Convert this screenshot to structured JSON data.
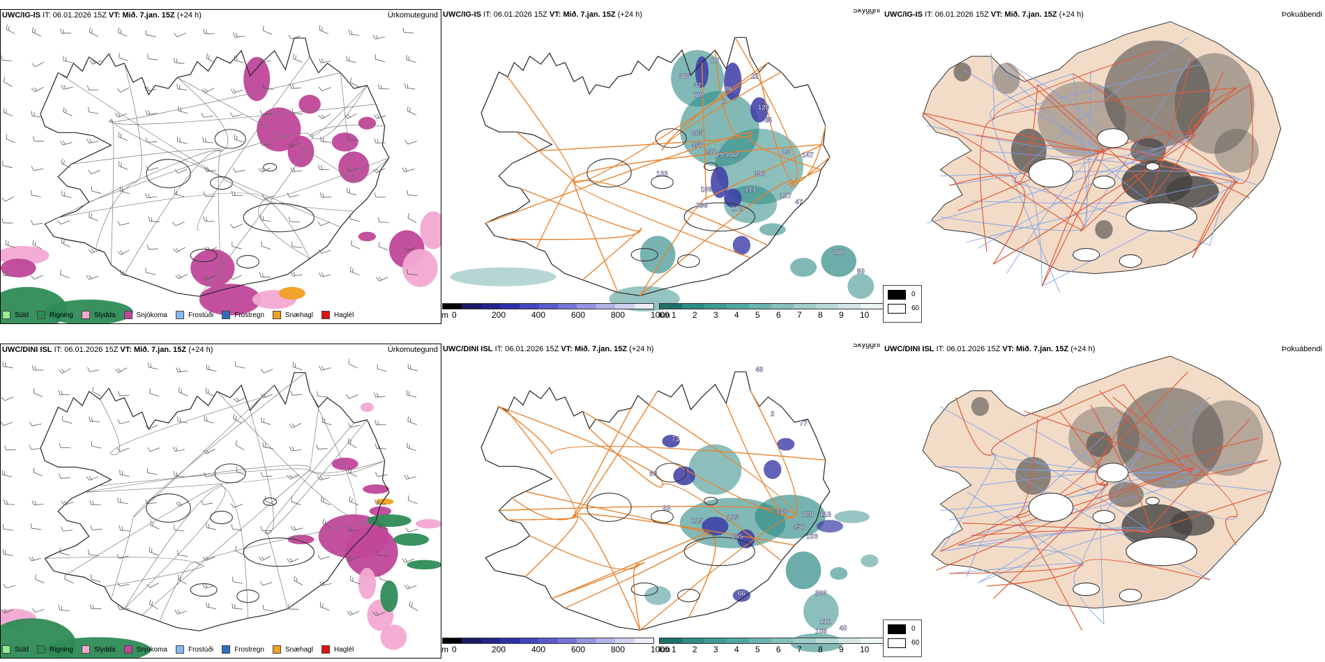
{
  "colors": {
    "land_fill_fog": "#f2dcc8",
    "road": "#e8822e",
    "road_fog": "#e05a3a",
    "river": "#7f9fe6",
    "coast": "#222222",
    "snow": "#c0479a",
    "rain": "#2e8b57",
    "sleet": "#f2a9d2",
    "vis_teal": "#2e8a85",
    "vis_blue": "#3b3ba6",
    "fog_grey": "#444444"
  },
  "legend_precip_type": [
    {
      "label": "Súld",
      "color": "#90ee90",
      "icon": "square-swatch"
    },
    {
      "label": "Rigning",
      "color": "#2e8b57",
      "icon": "square-swatch"
    },
    {
      "label": "Slydda",
      "color": "#f2a9d2",
      "icon": "square-swatch"
    },
    {
      "label": "Snjókoma",
      "color": "#c0479a",
      "icon": "square-swatch"
    },
    {
      "label": "Frostúði",
      "color": "#87b8ef",
      "icon": "square-swatch"
    },
    {
      "label": "Frostregn",
      "color": "#2e6fbd",
      "icon": "square-swatch"
    },
    {
      "label": "Snæhagl",
      "color": "#f0a020",
      "icon": "square-swatch"
    },
    {
      "label": "Haglél",
      "color": "#e01010",
      "icon": "square-swatch"
    }
  ],
  "scale_m": {
    "unit": "m",
    "ticks": [
      "0",
      "200",
      "400",
      "600",
      "800",
      "1000"
    ],
    "colors": [
      "#000000",
      "#1a1a66",
      "#24248a",
      "#2e2ea6",
      "#4545bd",
      "#5a5acc",
      "#7676d6",
      "#9595df",
      "#b3b3e8",
      "#d0d0f0",
      "#ececfa"
    ]
  },
  "scale_km": {
    "unit": "km",
    "ticks": [
      "1",
      "2",
      "3",
      "4",
      "5",
      "6",
      "7",
      "8",
      "9",
      "10"
    ],
    "colors": [
      "#1f6e6a",
      "#2e8a85",
      "#3f9994",
      "#52a6a1",
      "#6bb3ae",
      "#85c0bb",
      "#9ecdc9",
      "#b8dad7",
      "#d2e7e5",
      "#ecf5f4"
    ]
  },
  "fog_legend": {
    "black": "0",
    "white": "60"
  },
  "panels": [
    {
      "row": 1,
      "kind": "type",
      "model": "UWC/IG-IS",
      "it_label": "IT:",
      "it": "06.01.2026 15Z",
      "vt_label": "VT:",
      "vt": "Mið. 7.jan. 15Z",
      "lead": "(+24 h)",
      "title": "Úrkomutegund"
    },
    {
      "row": 1,
      "kind": "vis",
      "model": "UWC/IG-IS",
      "it_label": "IT:",
      "it": "06.01.2026 15Z",
      "vt_label": "VT:",
      "vt": "Mið. 7.jan. 15Z",
      "lead": "(+24 h)",
      "title": "Skyggni",
      "labels": [
        "10",
        "606",
        "37",
        "2",
        "86",
        "8",
        "22",
        "72",
        "120",
        "7",
        "285",
        "457",
        "247",
        "29",
        "802",
        "14",
        "147",
        "133",
        "898",
        "166",
        "114",
        "299",
        "178",
        "127",
        "47",
        "34",
        "200",
        "69"
      ]
    },
    {
      "row": 1,
      "kind": "fog",
      "model": "UWC/IG-IS",
      "it_label": "IT:",
      "it": "06.01.2026 15Z",
      "vt_label": "VT:",
      "vt": "Mið. 7.jan. 15Z",
      "lead": "(+24 h)",
      "title": "Þokuábendi"
    },
    {
      "row": 2,
      "kind": "type",
      "model": "UWC/DINI ISL",
      "it_label": "IT:",
      "it": "06.01.2026 15Z",
      "vt_label": "VT:",
      "vt": "Mið. 7.jan. 15Z",
      "lead": "(+24 h)",
      "title": "Úrkomutegund"
    },
    {
      "row": 2,
      "kind": "vis",
      "model": "UWC/DINI ISL",
      "it_label": "IT:",
      "it": "06.01.2026 15Z",
      "vt_label": "VT:",
      "vt": "Mið. 7.jan. 15Z",
      "lead": "(+24 h)",
      "title": "Skyggni",
      "labels": [
        "49",
        "2",
        "73",
        "77",
        "58",
        "93",
        "125",
        "105",
        "855",
        "138",
        "280",
        "450",
        "118",
        "103",
        "66",
        "863",
        "112",
        "108",
        "40"
      ]
    },
    {
      "row": 2,
      "kind": "fog",
      "model": "UWC/DINI ISL",
      "it_label": "IT:",
      "it": "06.01.2026 15Z",
      "vt_label": "VT:",
      "vt": "Mið. 7.jan. 15Z",
      "lead": "(+24 h)",
      "title": "Þokuábendi"
    }
  ]
}
